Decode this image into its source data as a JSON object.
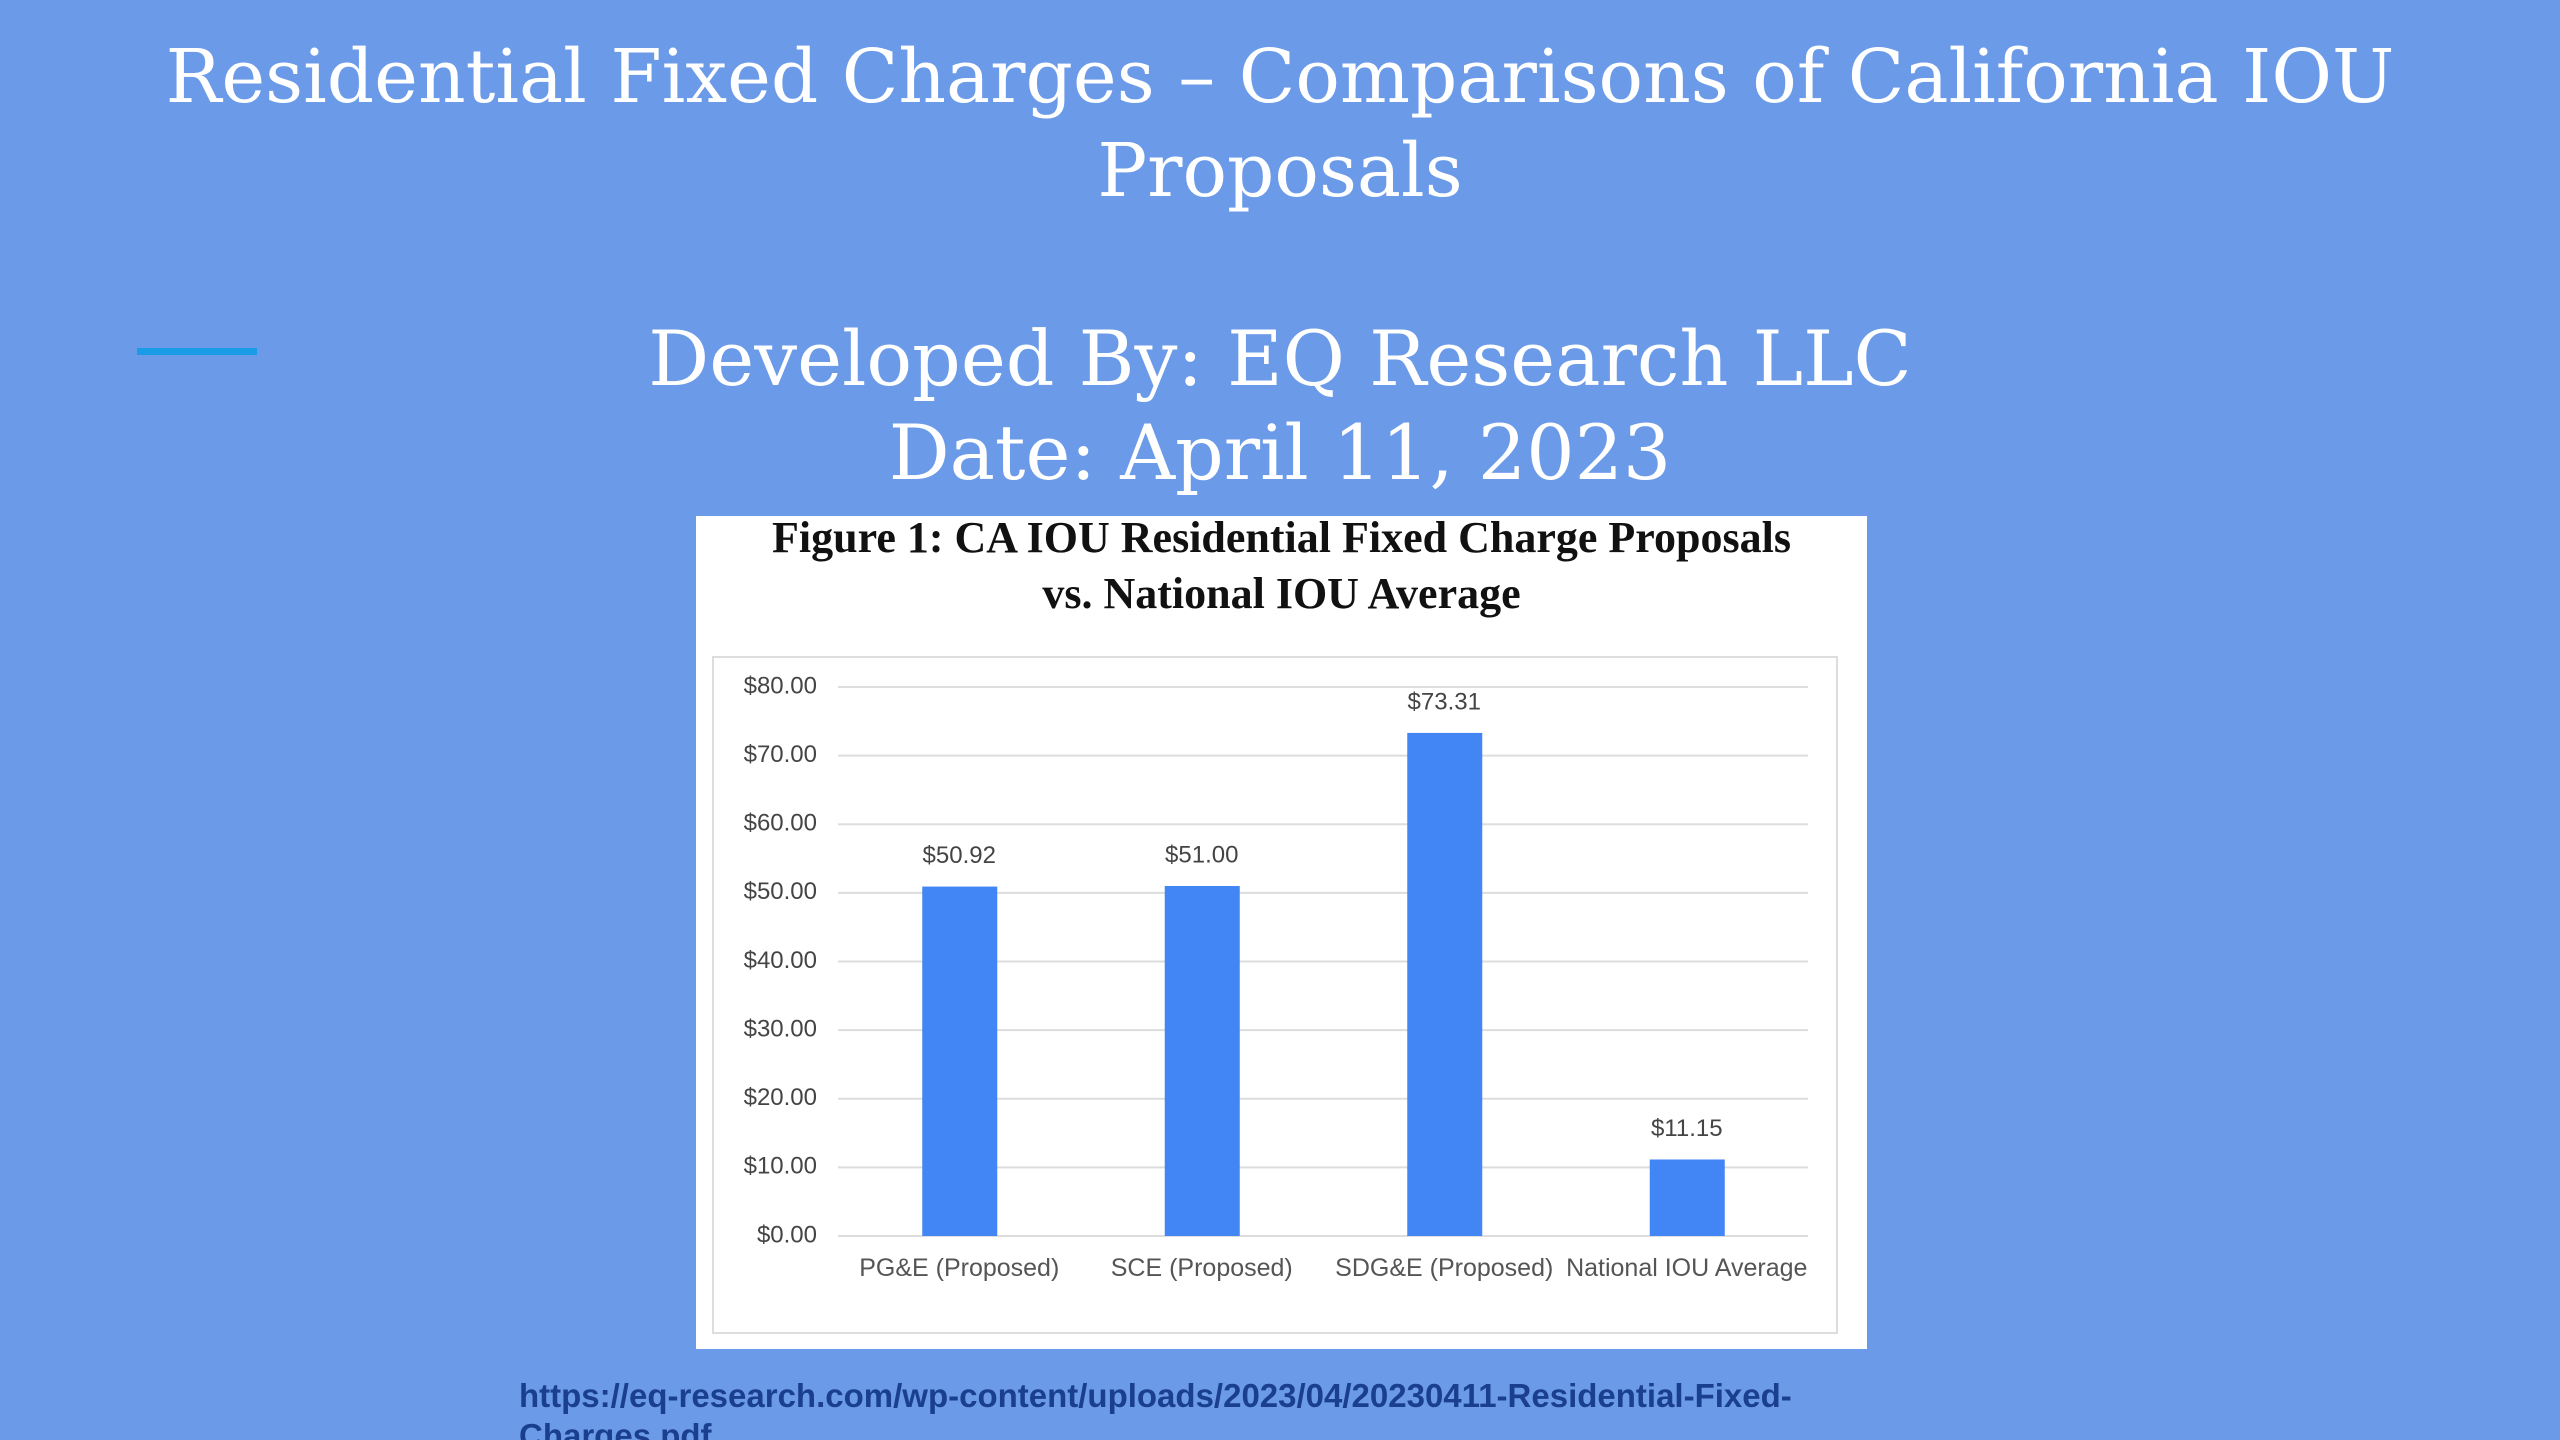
{
  "slide": {
    "title": "Residential Fixed Charges – Comparisons of California IOU Proposals",
    "subtitle_lines": [
      "Developed By: EQ Research LLC",
      "Date: April 11, 2023"
    ],
    "source_url": "https://eq-research.com/wp-content/uploads/2023/04/20230411-Residential-Fixed-Charges.pdf"
  },
  "chart_data": {
    "type": "bar",
    "title_lines": [
      "Figure 1: CA IOU Residential Fixed Charge Proposals",
      "vs. National IOU Average"
    ],
    "categories": [
      "PG&E (Proposed)",
      "SCE (Proposed)",
      "SDG&E (Proposed)",
      "National IOU Average"
    ],
    "values": [
      50.92,
      51.0,
      73.31,
      11.15
    ],
    "value_labels": [
      "$50.92",
      "$51.00",
      "$73.31",
      "$11.15"
    ],
    "color": "#4285f4",
    "ylim": [
      0,
      80
    ],
    "yticks": [
      {
        "value": 0,
        "label": "$0.00"
      },
      {
        "value": 10,
        "label": "$10.00"
      },
      {
        "value": 20,
        "label": "$20.00"
      },
      {
        "value": 30,
        "label": "$30.00"
      },
      {
        "value": 40,
        "label": "$40.00"
      },
      {
        "value": 50,
        "label": "$50.00"
      },
      {
        "value": 60,
        "label": "$60.00"
      },
      {
        "value": 70,
        "label": "$70.00"
      },
      {
        "value": 80,
        "label": "$80.00"
      }
    ],
    "grid": true
  }
}
